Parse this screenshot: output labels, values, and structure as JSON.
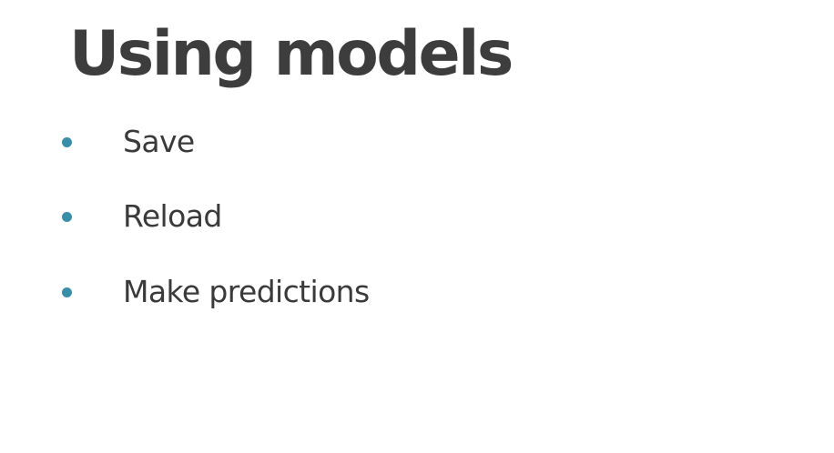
{
  "slide": {
    "title": "Using models",
    "bullets": [
      {
        "label": "Save"
      },
      {
        "label": "Reload"
      },
      {
        "label": "Make predictions"
      }
    ]
  },
  "colors": {
    "title": "#3d3d3d",
    "text": "#3a3a3a",
    "bullet": "#3a8fa8",
    "background": "#ffffff"
  }
}
